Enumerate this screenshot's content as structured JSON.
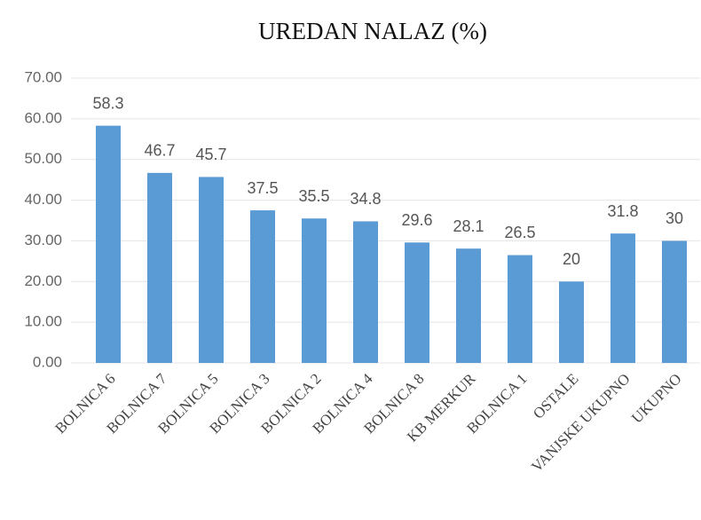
{
  "chart_data": {
    "type": "bar",
    "title": "UREDAN NALAZ (%)",
    "categories": [
      "BOLNICA 6",
      "BOLNICA 7",
      "BOLNICA 5",
      "BOLNICA 3",
      "BOLNICA 2",
      "BOLNICA 4",
      "BOLNICA 8",
      "KB MERKUR",
      "BOLNICA 1",
      "OSTALE",
      "VANJSKE UKUPNO",
      "UKUPNO"
    ],
    "values": [
      58.3,
      46.7,
      45.7,
      37.5,
      35.5,
      34.8,
      29.6,
      28.1,
      26.5,
      20,
      31.8,
      30
    ],
    "color": "#5b9bd5",
    "ylim": [
      0,
      70
    ],
    "yticks": [
      {
        "value": 0,
        "label": "0.00"
      },
      {
        "value": 10,
        "label": "10.00"
      },
      {
        "value": 20,
        "label": "20.00"
      },
      {
        "value": 30,
        "label": "30.00"
      },
      {
        "value": 40,
        "label": "40.00"
      },
      {
        "value": 50,
        "label": "50.00"
      },
      {
        "value": 60,
        "label": "60.00"
      },
      {
        "value": 70,
        "label": "70.00"
      }
    ],
    "grid": true
  }
}
